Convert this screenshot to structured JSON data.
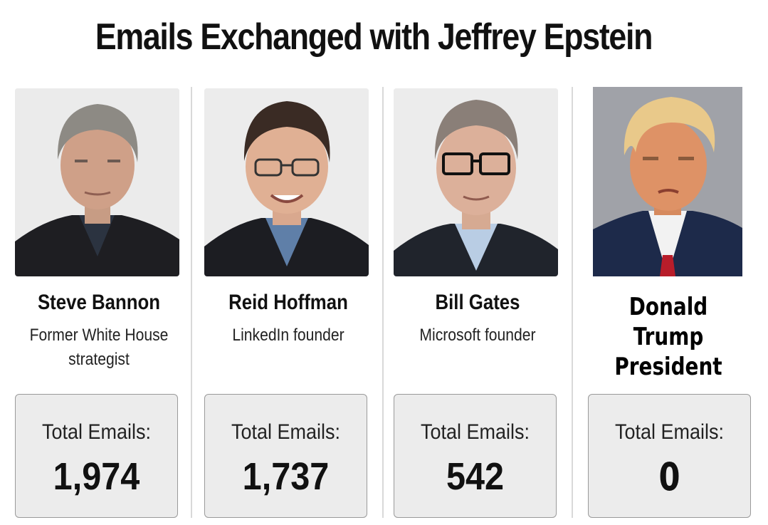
{
  "title": "Emails Exchanged with Jeffrey Epstein",
  "people": [
    {
      "name": "Steve Bannon",
      "role_line1": "Former White House",
      "role_line2": "strategist",
      "emails_label": "Total Emails:",
      "emails": "1,974"
    },
    {
      "name": "Reid Hoffman",
      "role_line1": "LinkedIn founder",
      "role_line2": "",
      "emails_label": "Total Emails:",
      "emails": "1,737"
    },
    {
      "name": "Bill Gates",
      "role_line1": "Microsoft founder",
      "role_line2": "",
      "emails_label": "Total Emails:",
      "emails": "542"
    },
    {
      "name": "Donald Trump",
      "role_line1": "President",
      "role_line2": "",
      "emails_label": "Total Emails:",
      "emails": "0"
    }
  ],
  "colors": {
    "background": "#ffffff",
    "card": "#ececec",
    "card_border": "#9a9a9a",
    "divider": "#d9d9d9",
    "text": "#111111"
  }
}
